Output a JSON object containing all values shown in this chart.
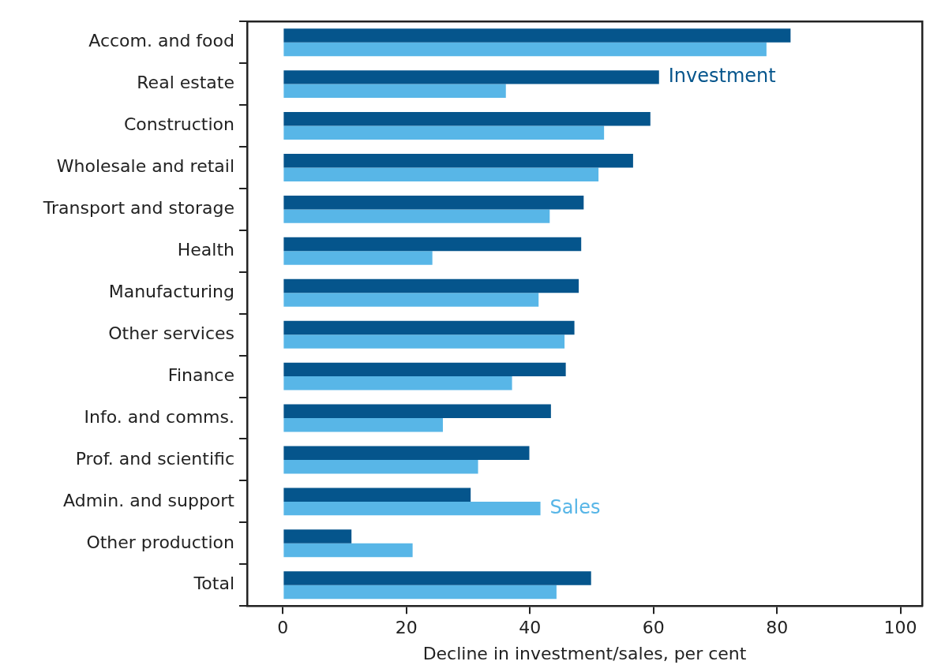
{
  "chart_data": {
    "type": "bar",
    "orientation": "horizontal",
    "xlabel": "Decline in investment/sales, per cent",
    "categories": [
      "Accom. and food",
      "Real estate",
      "Construction",
      "Wholesale and retail",
      "Transport and storage",
      "Health",
      "Manufacturing",
      "Other services",
      "Finance",
      "Info. and comms.",
      "Prof. and scientific",
      "Admin. and support",
      "Other production",
      "Total"
    ],
    "series": [
      {
        "name": "Investment",
        "color": "#05558c",
        "values": [
          82.2,
          60.9,
          59.5,
          56.7,
          48.7,
          48.3,
          47.9,
          47.2,
          45.8,
          43.4,
          39.9,
          30.4,
          11.1,
          49.9
        ]
      },
      {
        "name": "Sales",
        "color": "#58b6e7",
        "values": [
          78.3,
          36.1,
          52.0,
          51.1,
          43.2,
          24.2,
          41.4,
          45.6,
          37.1,
          25.9,
          31.6,
          41.7,
          21.0,
          44.3
        ]
      }
    ],
    "xlim": [
      -5.8,
      103.5
    ],
    "xticks": [
      0,
      20,
      40,
      60,
      80,
      100
    ],
    "grid": false,
    "legend": false
  }
}
